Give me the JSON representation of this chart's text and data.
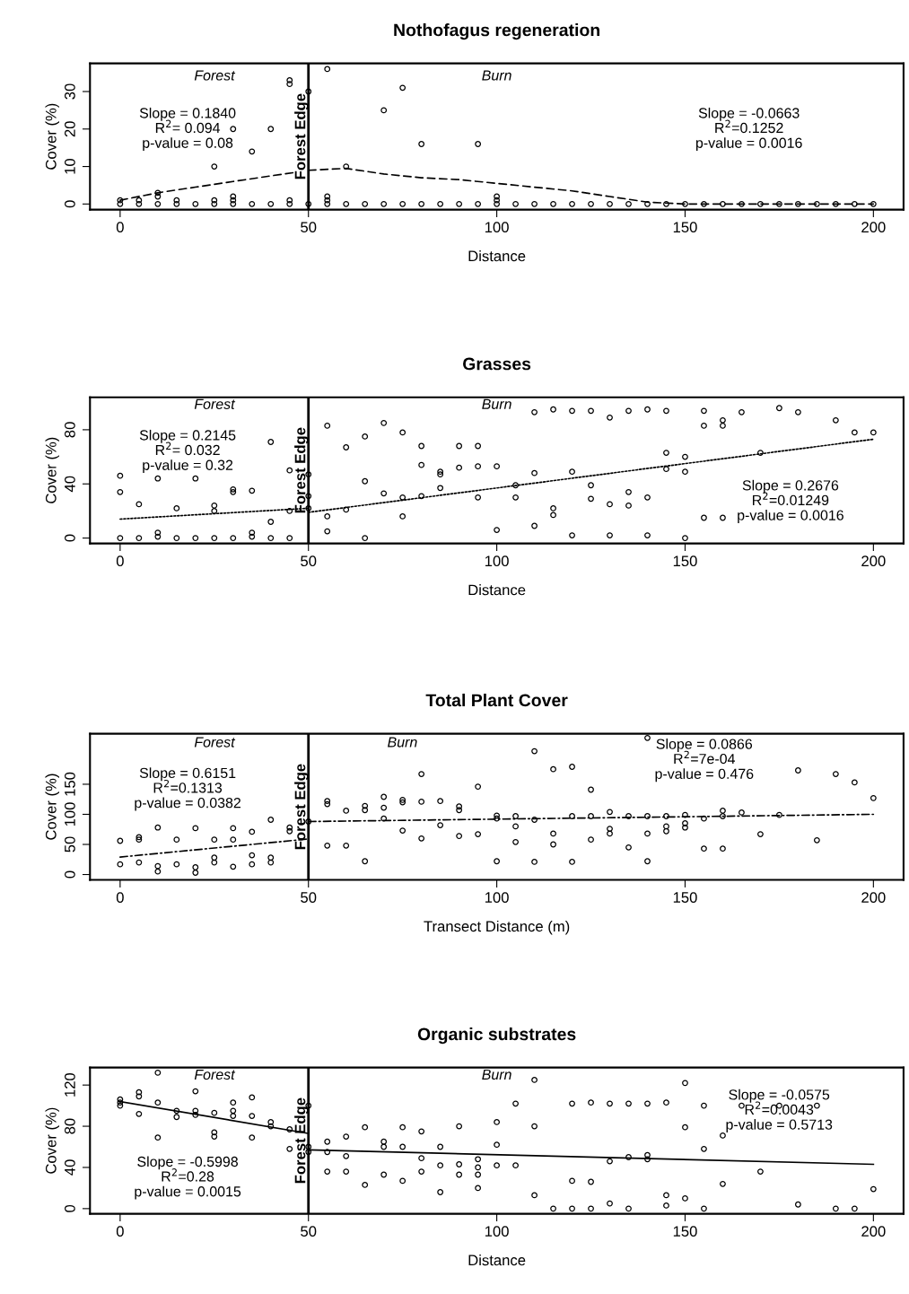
{
  "chart_data": [
    {
      "type": "scatter",
      "title": "Nothofagus regeneration",
      "xlabel": "Distance",
      "ylabel": "Cover (%)",
      "xlim": [
        -8,
        208
      ],
      "ylim": [
        -1.5,
        37.5
      ],
      "xticks": [
        0,
        50,
        100,
        150,
        200
      ],
      "yticks": [
        0,
        10,
        20,
        30
      ],
      "grid": false,
      "legend": false,
      "series": [
        {
          "marker": "circle",
          "color": "#000000",
          "x": [
            0,
            0,
            5,
            5,
            10,
            10,
            10,
            15,
            15,
            20,
            25,
            25,
            25,
            30,
            30,
            30,
            30,
            35,
            35,
            40,
            40,
            45,
            45,
            45,
            45,
            50,
            50,
            55,
            55,
            55,
            55,
            60,
            60,
            65,
            70,
            70,
            75,
            75,
            80,
            80,
            85,
            90,
            95,
            95,
            100,
            100,
            100,
            105,
            110,
            115,
            120,
            125,
            130,
            135,
            140,
            145,
            150,
            155,
            160,
            165,
            170,
            175,
            180,
            185,
            190,
            195,
            200
          ],
          "values": [
            0,
            1,
            0,
            1,
            0,
            2,
            3,
            0,
            1,
            0,
            0,
            1,
            10,
            0,
            1,
            2,
            20,
            0,
            14,
            0,
            20,
            0,
            1,
            32,
            33,
            0,
            30,
            0,
            1,
            2,
            36,
            0,
            10,
            0,
            0,
            25,
            0,
            31,
            0,
            16,
            0,
            0,
            0,
            16,
            0,
            1,
            2,
            0,
            0,
            0,
            0,
            0,
            0,
            0,
            0,
            0,
            0,
            0,
            0,
            0,
            0,
            0,
            0,
            0,
            0,
            0,
            0
          ]
        },
        {
          "type": "line",
          "marker": "none",
          "line_style": "dashed",
          "color": "#000000",
          "x": [
            0,
            10,
            20,
            30,
            40,
            47
          ],
          "values": [
            1,
            3,
            4.5,
            6,
            7.5,
            8.5
          ]
        },
        {
          "type": "line",
          "marker": "none",
          "line_style": "dashed",
          "color": "#000000",
          "x": [
            50,
            60,
            70,
            80,
            90,
            100,
            110,
            120,
            130,
            140,
            150,
            160,
            200
          ],
          "values": [
            9,
            9.5,
            8,
            7,
            6.5,
            5.5,
            4.5,
            3.5,
            2,
            0.5,
            0,
            0,
            0
          ]
        }
      ],
      "ref_lines": [
        {
          "axis": "x",
          "value": 50,
          "label": "Forest Edge",
          "color": "#000000"
        }
      ],
      "annotations": [
        "Forest",
        "Burn",
        "Slope = 0.1840\nR$^{2}$= 0.094\np-value = 0.08",
        "Slope = -0.0663\nR$^{2}$=0.1252\np-value = 0.0016"
      ]
    },
    {
      "type": "scatter",
      "title": "Grasses",
      "xlabel": "Distance",
      "ylabel": "Cover (%)",
      "xlim": [
        -8,
        208
      ],
      "ylim": [
        -4,
        104
      ],
      "xticks": [
        0,
        50,
        100,
        150,
        200
      ],
      "yticks": [
        0,
        40,
        80
      ],
      "grid": false,
      "legend": false,
      "series": [
        {
          "marker": "circle",
          "color": "#000000",
          "x": [
            0,
            0,
            0,
            5,
            5,
            10,
            10,
            10,
            15,
            15,
            20,
            20,
            25,
            25,
            25,
            30,
            30,
            30,
            35,
            35,
            35,
            40,
            40,
            40,
            45,
            45,
            45,
            50,
            50,
            50,
            55,
            55,
            55,
            60,
            60,
            65,
            65,
            65,
            70,
            70,
            75,
            75,
            75,
            80,
            80,
            80,
            85,
            85,
            85,
            90,
            90,
            95,
            95,
            95,
            100,
            100,
            105,
            105,
            110,
            110,
            110,
            115,
            115,
            115,
            120,
            120,
            120,
            125,
            125,
            125,
            130,
            130,
            130,
            135,
            135,
            135,
            140,
            140,
            140,
            145,
            145,
            145,
            150,
            150,
            150,
            155,
            155,
            155,
            160,
            160,
            160,
            165,
            170,
            175,
            180,
            190,
            195,
            200
          ],
          "values": [
            0,
            34,
            46,
            0,
            25,
            1,
            4,
            44,
            0,
            22,
            0,
            44,
            0,
            20,
            24,
            0,
            34,
            36,
            1,
            4,
            35,
            0,
            12,
            71,
            0,
            20,
            50,
            22,
            31,
            47,
            5,
            16,
            83,
            21,
            67,
            0,
            42,
            75,
            33,
            85,
            16,
            30,
            78,
            31,
            54,
            68,
            37,
            47,
            49,
            52,
            68,
            30,
            53,
            68,
            6,
            53,
            30,
            39,
            9,
            48,
            93,
            17,
            22,
            95,
            2,
            49,
            94,
            29,
            39,
            94,
            2,
            25,
            89,
            24,
            34,
            94,
            2,
            30,
            95,
            51,
            63,
            94,
            0,
            49,
            60,
            15,
            83,
            94,
            15,
            83,
            87,
            93,
            63,
            96,
            93,
            87,
            78,
            78
          ]
        },
        {
          "type": "line",
          "marker": "none",
          "line_style": "dotted",
          "color": "#000000",
          "x": [
            0,
            50
          ],
          "values": [
            14,
            22
          ]
        },
        {
          "type": "line",
          "marker": "none",
          "line_style": "dotted",
          "color": "#000000",
          "x": [
            50,
            200
          ],
          "values": [
            19,
            73
          ]
        }
      ],
      "ref_lines": [
        {
          "axis": "x",
          "value": 50,
          "label": "Forest Edge",
          "color": "#000000"
        }
      ],
      "annotations": [
        "Forest",
        "Burn",
        "Slope = 0.2145\nR$^{2}$= 0.032\np-value = 0.32",
        "Slope = 0.2676\nR$^{2}$=0.01249\np-value = 0.0016"
      ]
    },
    {
      "type": "scatter",
      "title": "Total Plant Cover",
      "xlabel": "Transect Distance (m)",
      "ylabel": "Cover (%)",
      "xlim": [
        -8,
        208
      ],
      "ylim": [
        -9,
        234
      ],
      "xticks": [
        0,
        50,
        100,
        150,
        200
      ],
      "yticks": [
        0,
        50,
        100,
        150
      ],
      "grid": false,
      "legend": false,
      "series": [
        {
          "marker": "circle",
          "color": "#000000",
          "x": [
            0,
            0,
            5,
            5,
            5,
            10,
            10,
            10,
            15,
            15,
            20,
            20,
            20,
            25,
            25,
            25,
            30,
            30,
            30,
            35,
            35,
            35,
            40,
            40,
            40,
            45,
            45,
            50,
            55,
            55,
            55,
            60,
            60,
            65,
            65,
            65,
            70,
            70,
            70,
            75,
            75,
            75,
            80,
            80,
            80,
            85,
            85,
            90,
            90,
            90,
            95,
            95,
            100,
            100,
            100,
            105,
            105,
            105,
            110,
            110,
            110,
            115,
            115,
            115,
            120,
            120,
            120,
            125,
            125,
            125,
            130,
            130,
            130,
            135,
            135,
            140,
            140,
            140,
            140,
            145,
            145,
            145,
            150,
            150,
            150,
            155,
            155,
            160,
            160,
            160,
            165,
            170,
            175,
            180,
            185,
            190,
            195,
            200
          ],
          "values": [
            17,
            56,
            20,
            58,
            62,
            5,
            14,
            78,
            17,
            58,
            3,
            12,
            77,
            20,
            28,
            58,
            13,
            58,
            77,
            17,
            32,
            71,
            20,
            28,
            91,
            72,
            78,
            88,
            48,
            117,
            122,
            48,
            106,
            22,
            107,
            114,
            93,
            111,
            129,
            73,
            120,
            124,
            60,
            121,
            167,
            82,
            122,
            64,
            107,
            113,
            67,
            146,
            22,
            93,
            98,
            54,
            80,
            97,
            21,
            91,
            205,
            50,
            68,
            175,
            21,
            97,
            179,
            58,
            97,
            141,
            68,
            76,
            104,
            45,
            97,
            22,
            68,
            97,
            227,
            72,
            80,
            97,
            78,
            85,
            99,
            43,
            93,
            43,
            97,
            106,
            103,
            67,
            99,
            173,
            57,
            167,
            153,
            127
          ]
        },
        {
          "type": "line",
          "marker": "none",
          "line_style": "dashdot",
          "color": "#000000",
          "x": [
            0,
            50
          ],
          "values": [
            29,
            59
          ]
        },
        {
          "type": "line",
          "marker": "none",
          "line_style": "dashdot",
          "color": "#000000",
          "x": [
            50,
            200
          ],
          "values": [
            88,
            100
          ]
        }
      ],
      "ref_lines": [
        {
          "axis": "x",
          "value": 50,
          "label": "Forest Edge",
          "color": "#000000"
        }
      ],
      "annotations": [
        "Forest",
        "Burn",
        "Slope = 0.6151\nR$^{2}$=0.1313\np-value = 0.0382",
        "Slope = 0.0866\nR$^{2}$=7e-04\np-value = 0.476"
      ]
    },
    {
      "type": "scatter",
      "title": "Organic substrates",
      "xlabel": "Distance",
      "ylabel": "Cover (%)",
      "xlim": [
        -8,
        208
      ],
      "ylim": [
        -5,
        137
      ],
      "xticks": [
        0,
        50,
        100,
        150,
        200
      ],
      "yticks": [
        0,
        40,
        80,
        120
      ],
      "grid": false,
      "legend": false,
      "series": [
        {
          "marker": "circle",
          "color": "#000000",
          "x": [
            0,
            0,
            0,
            5,
            5,
            5,
            10,
            10,
            10,
            15,
            15,
            20,
            20,
            20,
            25,
            25,
            25,
            30,
            30,
            30,
            35,
            35,
            35,
            40,
            40,
            45,
            45,
            50,
            50,
            50,
            55,
            55,
            55,
            60,
            60,
            60,
            65,
            65,
            70,
            70,
            70,
            75,
            75,
            75,
            80,
            80,
            80,
            85,
            85,
            85,
            90,
            90,
            90,
            95,
            95,
            95,
            95,
            100,
            100,
            100,
            105,
            105,
            110,
            110,
            110,
            115,
            120,
            120,
            120,
            125,
            125,
            125,
            130,
            130,
            130,
            135,
            135,
            135,
            140,
            140,
            140,
            145,
            145,
            145,
            150,
            150,
            150,
            155,
            155,
            155,
            160,
            160,
            165,
            170,
            175,
            180,
            185,
            190,
            195,
            200
          ],
          "values": [
            100,
            103,
            106,
            92,
            109,
            113,
            69,
            103,
            132,
            89,
            95,
            91,
            95,
            114,
            70,
            74,
            93,
            90,
            95,
            103,
            69,
            90,
            108,
            80,
            84,
            58,
            77,
            55,
            60,
            100,
            36,
            55,
            65,
            36,
            51,
            70,
            23,
            79,
            33,
            60,
            65,
            27,
            60,
            79,
            36,
            49,
            75,
            16,
            42,
            60,
            33,
            43,
            80,
            20,
            33,
            40,
            48,
            42,
            62,
            84,
            42,
            102,
            13,
            80,
            125,
            0,
            0,
            27,
            102,
            0,
            26,
            103,
            5,
            46,
            102,
            0,
            50,
            102,
            48,
            52,
            102,
            3,
            13,
            103,
            10,
            79,
            122,
            0,
            58,
            100,
            24,
            71,
            100,
            36,
            100,
            4,
            100,
            0,
            0,
            19
          ]
        },
        {
          "type": "line",
          "marker": "none",
          "line_style": "solid",
          "color": "#000000",
          "x": [
            0,
            50
          ],
          "values": [
            104,
            73
          ]
        },
        {
          "type": "line",
          "marker": "none",
          "line_style": "solid",
          "color": "#000000",
          "x": [
            50,
            200
          ],
          "values": [
            57,
            43
          ]
        }
      ],
      "ref_lines": [
        {
          "axis": "x",
          "value": 50,
          "label": "Forest Edge",
          "color": "#000000"
        }
      ],
      "annotations": [
        "Forest",
        "Burn",
        "Slope = -0.5998\nR$^{2}$=0.28\np-value = 0.0015",
        "Slope = -0.0575\nR$^{2}$=0.0043\np-value = 0.5713"
      ]
    }
  ]
}
